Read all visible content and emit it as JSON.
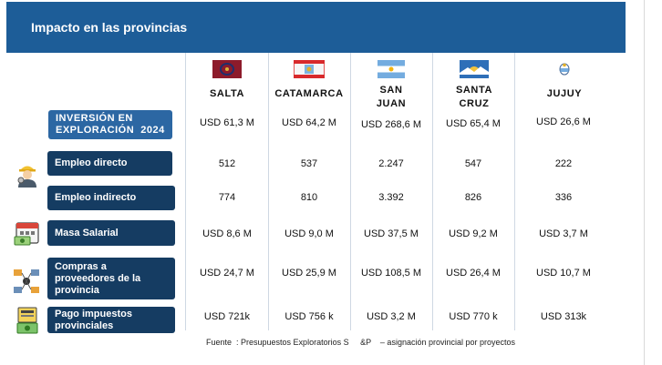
{
  "title": "Impacto en las provincias",
  "provinces": [
    {
      "name": "SALTA",
      "flag": "salta-flag-icon"
    },
    {
      "name": "CATAMARCA",
      "flag": "catamarca-flag-icon"
    },
    {
      "name": "SAN\nJUAN",
      "flag": "san-juan-flag-icon"
    },
    {
      "name": "SANTA\nCRUZ",
      "flag": "santa-cruz-flag-icon"
    },
    {
      "name": "JUJUY",
      "flag": "jujuy-flag-icon"
    }
  ],
  "rows": [
    {
      "label": "INVERSIÓN EN\nEXPLORACIÓN  2024",
      "icon": "",
      "values": [
        "USD 61,3 M",
        "USD 64,2 M",
        "USD 268,6 M",
        "USD 65,4 M",
        "USD 26,6 M"
      ]
    },
    {
      "label": "Empleo directo",
      "icon": "worker-icon",
      "values": [
        "512",
        "537",
        "2.247",
        "547",
        "222"
      ]
    },
    {
      "label": "Empleo indirecto",
      "icon": "",
      "values": [
        "774",
        "810",
        "3.392",
        "826",
        "336"
      ]
    },
    {
      "label": "Masa Salarial",
      "icon": "calendar-money-icon",
      "values": [
        "USD 8,6 M",
        "USD 9,0 M",
        "USD 37,5 M",
        "USD 9,2 M",
        "USD 3,7 M"
      ]
    },
    {
      "label": "Compras a\nproveedores de la\nprovincia",
      "icon": "supply-network-icon",
      "values": [
        "USD 24,7 M",
        "USD 25,9 M",
        "USD 108,5 M",
        "USD 26,4 M",
        "USD 10,7 M"
      ]
    },
    {
      "label": "Pago impuestos\nprovinciales",
      "icon": "tax-payment-icon",
      "values": [
        "USD 721k",
        "USD 756 k",
        "USD 3,2 M",
        "USD 770 k",
        "USD 313k"
      ]
    }
  ],
  "source": "Fuente  : Presupuestos Exploratorios S     &P    – asignación provincial por proyectos",
  "colors": {
    "header": "#1d5d98",
    "label_bg": "#153c62",
    "label_bg_top": "#2c67a3"
  }
}
